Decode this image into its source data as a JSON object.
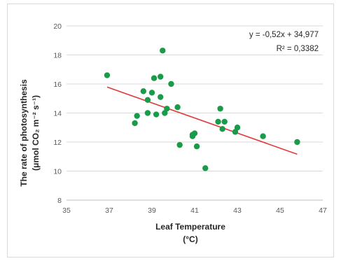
{
  "chart_data": {
    "type": "scatter",
    "xlabel": [
      "Leaf Temperature",
      "(°C)"
    ],
    "ylabel": [
      "The rate of photosynthesis",
      "(μmol CO₂ m⁻² s⁻¹)"
    ],
    "xlim": [
      35,
      47
    ],
    "ylim": [
      8,
      20
    ],
    "xticks": [
      35,
      37,
      39,
      41,
      43,
      45,
      47
    ],
    "yticks": [
      8,
      10,
      12,
      14,
      16,
      18,
      20
    ],
    "xtick_labels": [
      "35",
      "37",
      "39",
      "41",
      "43",
      "45",
      "47"
    ],
    "ytick_labels": [
      "8",
      "10",
      "12",
      "14",
      "16",
      "18",
      "20"
    ],
    "grid": "horizontal",
    "point_color": "#1a9b4a",
    "trendline_color": "#e03a3a",
    "trendline": {
      "slope": -0.52,
      "intercept": 34.977,
      "x_range": [
        36.9,
        45.8
      ]
    },
    "annotations": [
      "y = -0,52x + 34,977",
      "R² = 0,3382"
    ],
    "points": [
      [
        36.9,
        16.6
      ],
      [
        38.2,
        13.3
      ],
      [
        38.3,
        13.8
      ],
      [
        38.6,
        15.5
      ],
      [
        38.8,
        14.9
      ],
      [
        38.8,
        14.0
      ],
      [
        39.0,
        15.4
      ],
      [
        39.1,
        16.4
      ],
      [
        39.2,
        13.9
      ],
      [
        39.4,
        16.5
      ],
      [
        39.4,
        15.1
      ],
      [
        39.5,
        18.3
      ],
      [
        39.6,
        14.0
      ],
      [
        39.7,
        14.3
      ],
      [
        39.9,
        16.0
      ],
      [
        40.2,
        14.4
      ],
      [
        40.3,
        11.8
      ],
      [
        40.9,
        12.4
      ],
      [
        40.9,
        12.5
      ],
      [
        41.0,
        12.6
      ],
      [
        41.1,
        11.7
      ],
      [
        41.5,
        10.2
      ],
      [
        42.1,
        13.4
      ],
      [
        42.2,
        14.3
      ],
      [
        42.3,
        12.9
      ],
      [
        42.4,
        13.4
      ],
      [
        42.9,
        12.7
      ],
      [
        43.0,
        13.0
      ],
      [
        44.2,
        12.4
      ],
      [
        45.8,
        12.0
      ]
    ]
  }
}
